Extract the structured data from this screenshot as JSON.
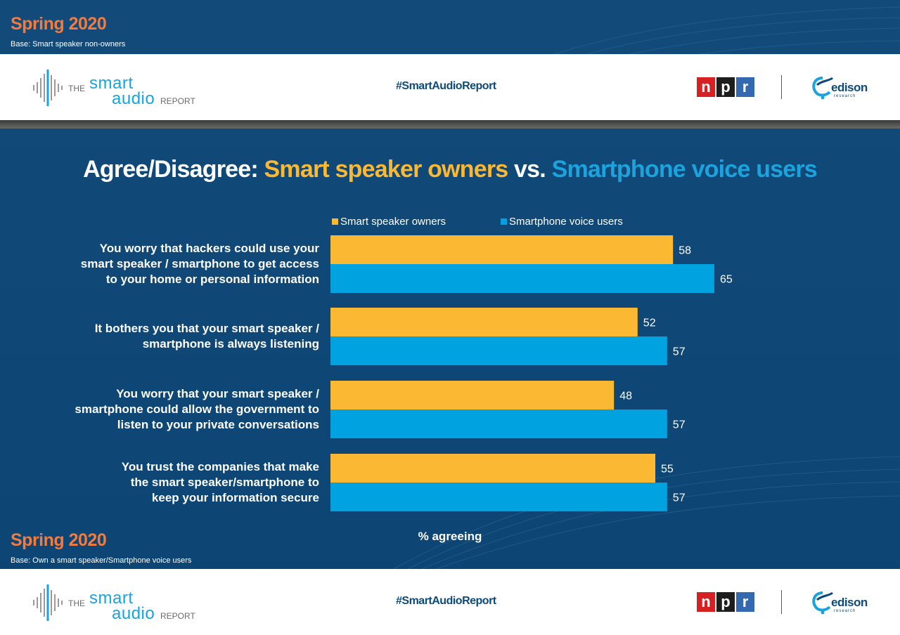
{
  "top": {
    "season": "Spring 2020",
    "base": "Base: Smart speaker non-owners"
  },
  "banner": {
    "logo_the": "THE",
    "logo_smart": "smart",
    "logo_audio": "audio",
    "logo_report": "REPORT",
    "hashtag": "#SmartAudioReport",
    "npr_letters": [
      "n",
      "p",
      "r"
    ],
    "edison": "edison",
    "edison_sub": "research"
  },
  "title": {
    "prefix": "Agree/Disagree: ",
    "part1": "Smart speaker owners",
    "mid": " vs. ",
    "part2": "Smartphone voice users"
  },
  "bottom": {
    "season": "Spring 2020",
    "base": "Base: Own a smart speaker/Smartphone voice users"
  },
  "chart_data": {
    "type": "bar",
    "orientation": "horizontal",
    "xlabel": "% agreeing",
    "xlim": [
      0,
      100
    ],
    "grid": false,
    "legend_position": "top",
    "categories": [
      "You worry that hackers could use your smart speaker / smartphone to get access to your home or personal information",
      "It bothers you that your smart speaker / smartphone is always listening",
      "You worry that your smart speaker / smartphone could allow the government to listen to your private conversations",
      "You trust the companies that make the smart speaker/smartphone to keep your information secure"
    ],
    "category_lines": [
      [
        "You worry that hackers could use your",
        "smart speaker / smartphone to get access",
        "to your home or personal information"
      ],
      [
        "It bothers you that your smart speaker /",
        "smartphone is always listening"
      ],
      [
        "You worry that your smart speaker /",
        "smartphone could allow the government to",
        "listen to your private conversations"
      ],
      [
        "You trust the companies that make",
        "the smart speaker/smartphone to",
        "keep your information secure"
      ]
    ],
    "series": [
      {
        "name": "Smart speaker owners",
        "color": "#fbb832",
        "values": [
          58,
          52,
          48,
          55
        ]
      },
      {
        "name": "Smartphone voice users",
        "color": "#00a3e0",
        "values": [
          65,
          57,
          57,
          57
        ]
      }
    ]
  },
  "colors": {
    "background": "#0e4878",
    "accent_orange": "#f47b3e",
    "speaker_gold": "#fbb832",
    "phone_blue": "#00a3e0"
  }
}
